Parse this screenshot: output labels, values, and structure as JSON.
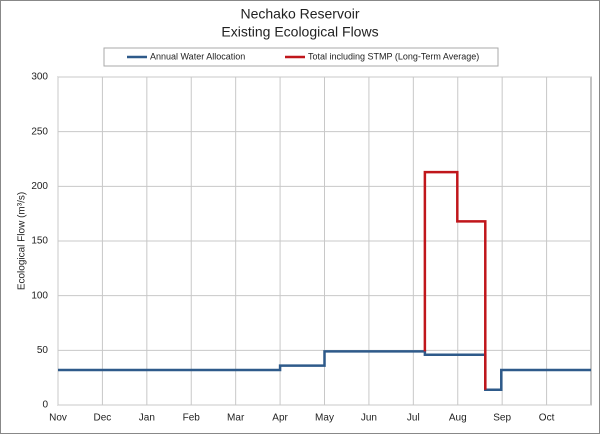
{
  "chart_data": {
    "type": "line",
    "title": "Nechako Reservoir",
    "subtitle": "Existing Ecological Flows",
    "y_label": "Ecological Flow (m³/s)",
    "xlim": [
      0,
      12
    ],
    "xticks": [
      {
        "value": 0,
        "label": "Nov"
      },
      {
        "value": 1,
        "label": "Dec"
      },
      {
        "value": 2,
        "label": "Jan"
      },
      {
        "value": 3,
        "label": "Feb"
      },
      {
        "value": 4,
        "label": "Mar"
      },
      {
        "value": 5,
        "label": "Apr"
      },
      {
        "value": 6,
        "label": "May"
      },
      {
        "value": 7,
        "label": "Jun"
      },
      {
        "value": 8,
        "label": "Jul"
      },
      {
        "value": 9,
        "label": "Aug"
      },
      {
        "value": 10,
        "label": "Sep"
      },
      {
        "value": 11,
        "label": "Oct"
      }
    ],
    "ylim": [
      0,
      300
    ],
    "yticks": [
      0,
      50,
      100,
      150,
      200,
      250,
      300
    ],
    "grid": true,
    "legend": "top",
    "series": [
      {
        "name": "Annual Water Allocation",
        "color": "#2e5a8a",
        "x": [
          0,
          5,
          5,
          6,
          6,
          8.26,
          8.26,
          9.62,
          9.62,
          9.98,
          9.98,
          12
        ],
        "values": [
          32,
          32,
          36,
          36,
          49,
          49,
          46,
          46,
          14,
          14,
          32,
          32
        ]
      },
      {
        "name": "Total including STMP (Long-Term Average)",
        "color": "#c0161b",
        "x": [
          8.26,
          8.26,
          8.99,
          8.99,
          9.62,
          9.62
        ],
        "values": [
          49,
          213,
          213,
          168,
          168,
          14
        ]
      }
    ]
  }
}
